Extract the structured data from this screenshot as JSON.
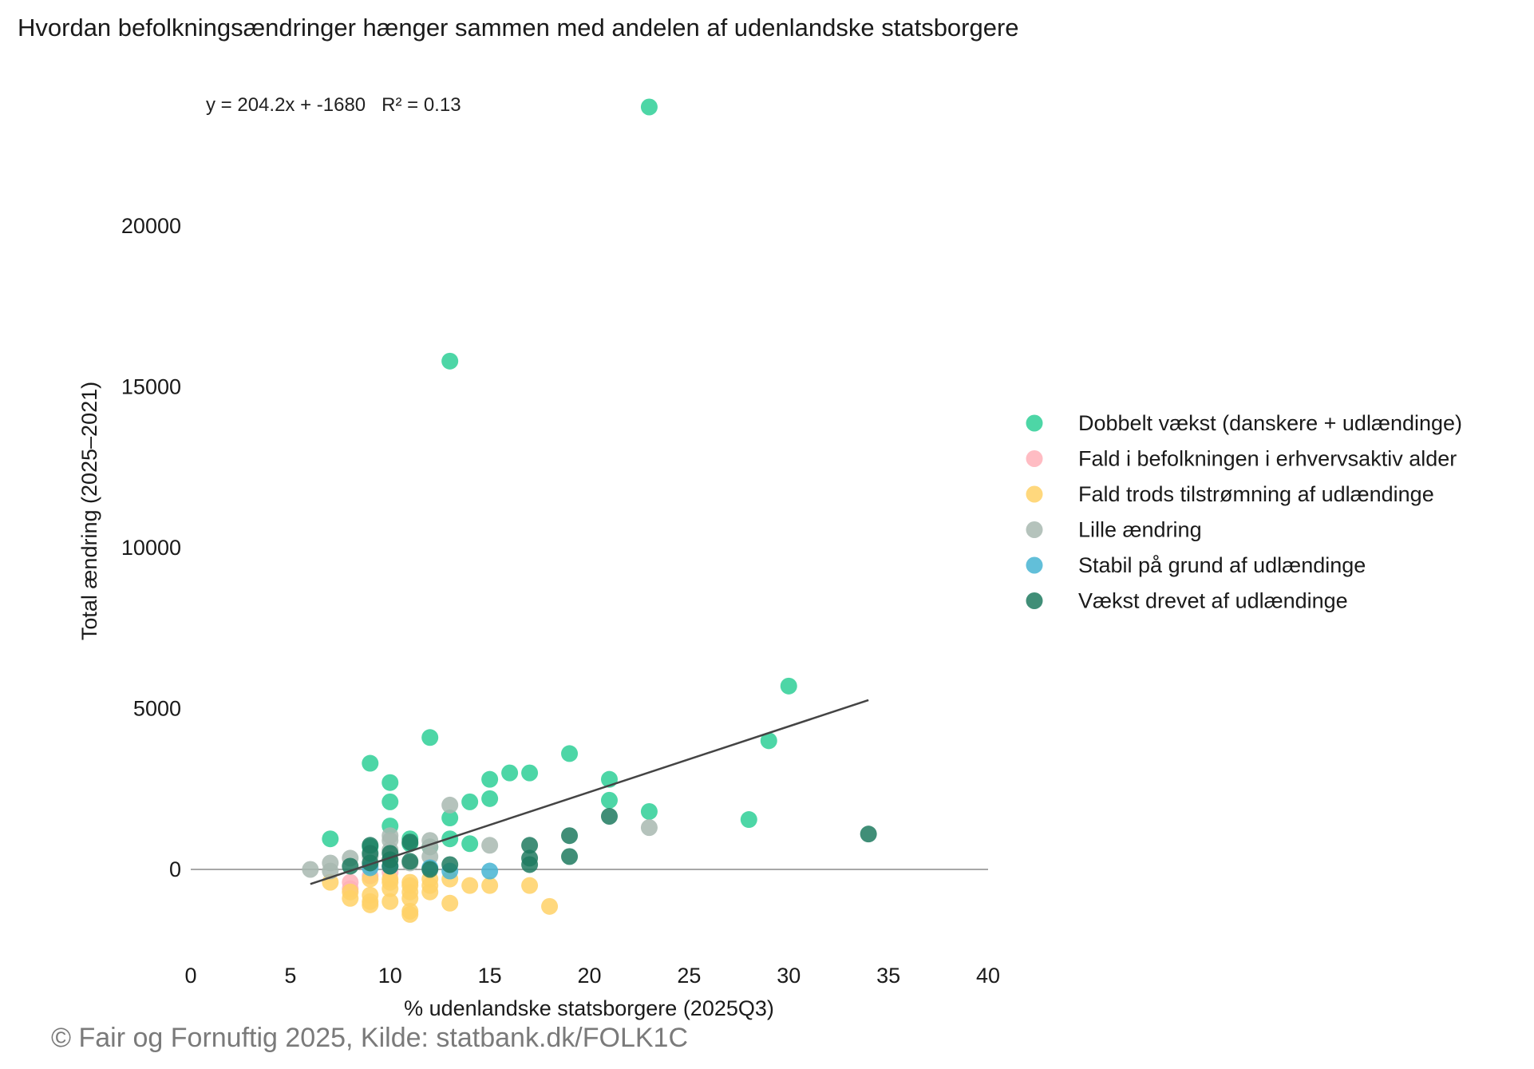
{
  "chart_data": {
    "type": "scatter",
    "title": "Hvordan befolkningsændringer hænger sammen med andelen af udenlandske statsborgere",
    "xlabel": "% udenlandske statsborgere (2025Q3)",
    "ylabel": "Total ændring (2025–2021)",
    "xlim": [
      0,
      40
    ],
    "ylim": [
      -2500,
      23500
    ],
    "x_ticks": [
      0,
      5,
      10,
      15,
      20,
      25,
      30,
      35,
      40
    ],
    "y_ticks": [
      0,
      5000,
      10000,
      15000,
      20000
    ],
    "grid": false,
    "zero_line": true,
    "legend_position": "right",
    "regression": {
      "label": "y = 204.2x + -1680   R² = 0.13",
      "slope": 204.2,
      "intercept": -1680,
      "x_range": [
        6,
        34
      ]
    },
    "series": [
      {
        "name": "Dobbelt vækst (danskere + udlændinge)",
        "color": "#2ecf96",
        "points": [
          [
            23,
            23700
          ],
          [
            13,
            15800
          ],
          [
            30,
            5700
          ],
          [
            29,
            4000
          ],
          [
            12,
            4100
          ],
          [
            19,
            3600
          ],
          [
            9,
            3300
          ],
          [
            16,
            3000
          ],
          [
            17,
            3000
          ],
          [
            10,
            2700
          ],
          [
            15,
            2800
          ],
          [
            21,
            2800
          ],
          [
            15,
            2200
          ],
          [
            14,
            2100
          ],
          [
            10,
            2100
          ],
          [
            21,
            2150
          ],
          [
            23,
            1800
          ],
          [
            28,
            1550
          ],
          [
            13,
            1600
          ],
          [
            10,
            1350
          ],
          [
            7,
            950
          ],
          [
            11,
            950
          ],
          [
            13,
            950
          ],
          [
            14,
            800
          ],
          [
            9,
            700
          ],
          [
            11,
            800
          ],
          [
            12,
            700
          ]
        ]
      },
      {
        "name": "Fald i befolkningen i erhvervsaktiv alder",
        "color": "#ffb0b8",
        "points": [
          [
            8,
            -600
          ],
          [
            9,
            -200
          ],
          [
            10,
            -100
          ],
          [
            8,
            -400
          ]
        ]
      },
      {
        "name": "Fald trods tilstrømning af udlændinge",
        "color": "#ffd166",
        "points": [
          [
            7,
            -400
          ],
          [
            8,
            -900
          ],
          [
            8,
            -700
          ],
          [
            9,
            -1000
          ],
          [
            9,
            -1100
          ],
          [
            9,
            -800
          ],
          [
            10,
            -1000
          ],
          [
            10,
            -600
          ],
          [
            10,
            -400
          ],
          [
            10,
            -300
          ],
          [
            11,
            -1300
          ],
          [
            11,
            -1400
          ],
          [
            11,
            -900
          ],
          [
            11,
            -700
          ],
          [
            11,
            -500
          ],
          [
            11,
            -400
          ],
          [
            12,
            -700
          ],
          [
            12,
            -500
          ],
          [
            12,
            -300
          ],
          [
            13,
            -1050
          ],
          [
            13,
            -300
          ],
          [
            14,
            -500
          ],
          [
            15,
            -500
          ],
          [
            17,
            -500
          ],
          [
            18,
            -1150
          ],
          [
            9,
            -300
          ]
        ]
      },
      {
        "name": "Lille ændring",
        "color": "#a8b8b0",
        "points": [
          [
            6,
            0
          ],
          [
            7,
            200
          ],
          [
            7,
            -50
          ],
          [
            8,
            350
          ],
          [
            9,
            100
          ],
          [
            9,
            400
          ],
          [
            10,
            900
          ],
          [
            10,
            1050
          ],
          [
            10,
            600
          ],
          [
            12,
            900
          ],
          [
            12,
            700
          ],
          [
            12,
            400
          ],
          [
            13,
            2000
          ],
          [
            15,
            750
          ],
          [
            23,
            1300
          ],
          [
            11,
            200
          ],
          [
            10,
            300
          ]
        ]
      },
      {
        "name": "Stabil på grund af udlændinge",
        "color": "#46b4d2",
        "points": [
          [
            12,
            50
          ],
          [
            13,
            -50
          ],
          [
            15,
            -50
          ],
          [
            10,
            100
          ],
          [
            9,
            50
          ]
        ]
      },
      {
        "name": "Vækst drevet af udlændinge",
        "color": "#1f7a5f",
        "points": [
          [
            34,
            1100
          ],
          [
            21,
            1650
          ],
          [
            19,
            1050
          ],
          [
            19,
            400
          ],
          [
            17,
            750
          ],
          [
            17,
            350
          ],
          [
            17,
            150
          ],
          [
            13,
            150
          ],
          [
            11,
            850
          ],
          [
            11,
            250
          ],
          [
            10,
            500
          ],
          [
            10,
            300
          ],
          [
            10,
            100
          ],
          [
            9,
            750
          ],
          [
            9,
            500
          ],
          [
            9,
            200
          ],
          [
            8,
            100
          ],
          [
            12,
            0
          ]
        ]
      }
    ]
  },
  "footer": {
    "source": "© Fair og Fornuftig 2025, Kilde: statbank.dk/FOLK1C"
  }
}
